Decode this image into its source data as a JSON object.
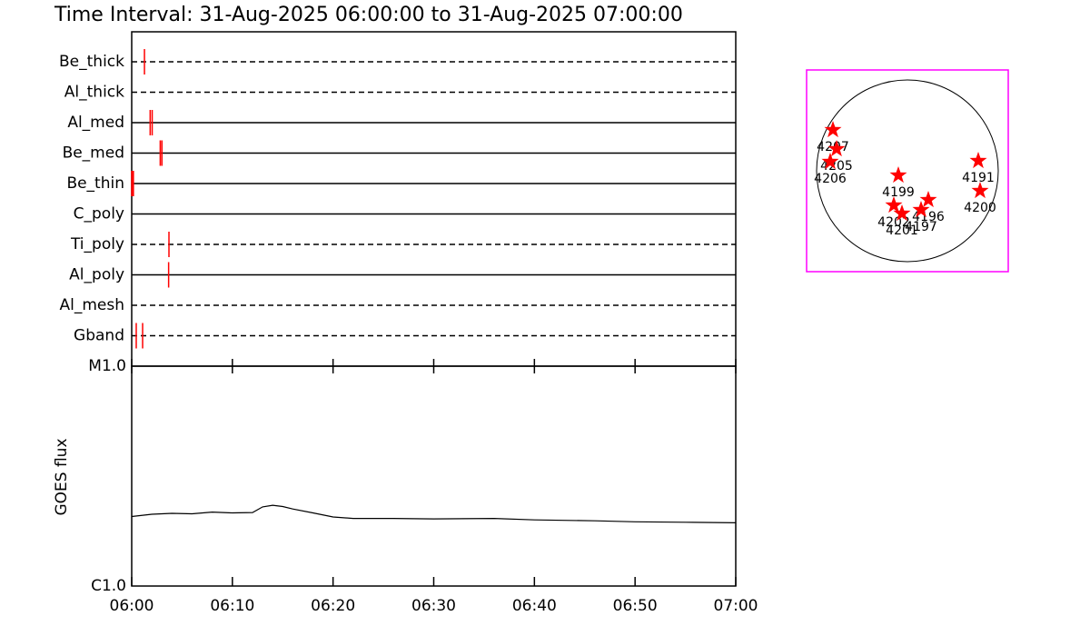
{
  "chart_data": [
    {
      "type": "timeline",
      "title": "Time Interval: 31-Aug-2025 06:00:00 to 31-Aug-2025 07:00:00",
      "categories": [
        "Be_thick",
        "Al_thick",
        "Al_med",
        "Be_med",
        "Be_thin",
        "C_poly",
        "Ti_poly",
        "Al_poly",
        "Al_mesh",
        "Gband"
      ],
      "line_styles": [
        "dashed",
        "dashed",
        "solid",
        "solid",
        "solid",
        "solid",
        "dashed",
        "solid",
        "dashed",
        "dashed"
      ],
      "events": [
        [
          "06:01:16"
        ],
        [],
        [
          "06:01:50",
          "06:02:02"
        ],
        [
          "06:02:50",
          "06:03:00"
        ],
        [
          "06:00:00",
          "06:00:05",
          "06:00:10"
        ],
        [],
        [
          "06:03:42"
        ],
        [
          "06:03:40"
        ],
        [],
        [
          "06:00:27",
          "06:01:05"
        ]
      ],
      "color": "#ff0000",
      "xlim": [
        "06:00",
        "07:00"
      ]
    },
    {
      "type": "line",
      "ylabel": "GOES flux",
      "x": [
        "06:00",
        "06:02",
        "06:04",
        "06:06",
        "06:08",
        "06:10",
        "06:12",
        "06:13",
        "06:14",
        "06:15",
        "06:16",
        "06:18",
        "06:20",
        "06:22",
        "06:26",
        "06:30",
        "06:36",
        "06:40",
        "06:46",
        "06:50",
        "06:55",
        "07:00"
      ],
      "values": [
        2.07e-06,
        2.12e-06,
        2.14e-06,
        2.13e-06,
        2.17e-06,
        2.15e-06,
        2.16e-06,
        2.29e-06,
        2.33e-06,
        2.3e-06,
        2.24e-06,
        2.15e-06,
        2.06e-06,
        2.03e-06,
        2.03e-06,
        2.02e-06,
        2.03e-06,
        2e-06,
        1.98e-06,
        1.96e-06,
        1.95e-06,
        1.94e-06
      ],
      "color": "#000000",
      "log_scale": true,
      "xlim": [
        "06:00",
        "07:00"
      ],
      "xticks": [
        "06:00",
        "06:10",
        "06:20",
        "06:30",
        "06:40",
        "06:50",
        "07:00"
      ],
      "ylim": [
        1e-06,
        1e-05
      ],
      "yticks": [
        {
          "value": 1e-06,
          "label": "C1.0"
        },
        {
          "value": 1e-05,
          "label": "M1.0"
        }
      ]
    },
    {
      "type": "scatter",
      "labels": [
        "4207",
        "4205",
        "4206",
        "4199",
        "4191",
        "4200",
        "4202",
        "4201",
        "4196",
        "4197"
      ],
      "x": [
        -0.82,
        -0.78,
        -0.85,
        -0.1,
        0.78,
        0.8,
        -0.15,
        -0.06,
        0.23,
        0.15
      ],
      "y": [
        0.45,
        0.24,
        0.1,
        -0.05,
        0.11,
        -0.22,
        -0.38,
        -0.47,
        -0.32,
        -0.43
      ],
      "color": "#ff0000",
      "frame_color": "#ff00ff",
      "xlim": [
        -1.11,
        1.11
      ],
      "ylim": [
        -1.11,
        1.11
      ]
    }
  ]
}
